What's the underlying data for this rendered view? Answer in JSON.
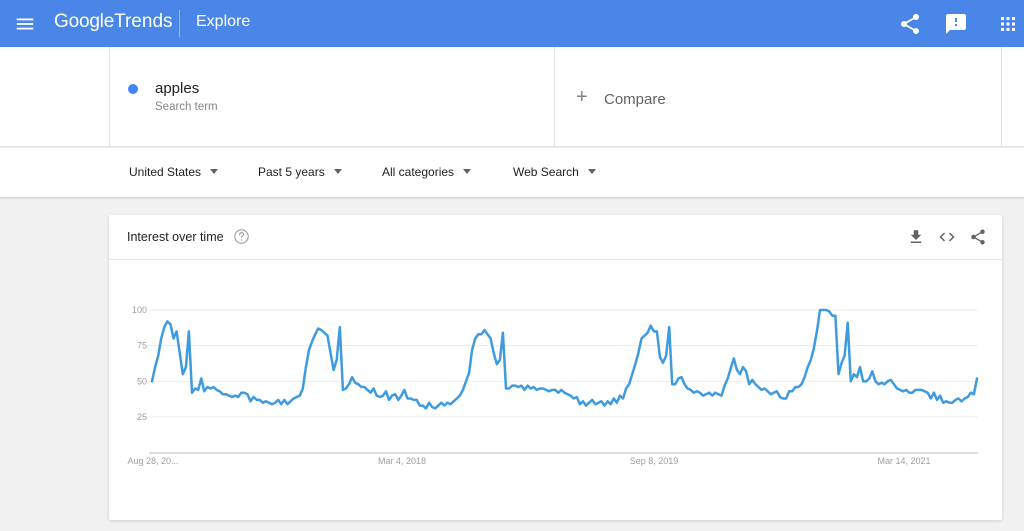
{
  "header": {
    "logo_google": "Google",
    "logo_trends": "Trends",
    "explore_label": "Explore",
    "icons": [
      "menu-icon",
      "share-icon",
      "feedback-icon",
      "apps-icon"
    ]
  },
  "search": {
    "term": "apples",
    "term_type": "Search term",
    "term_color": "#4285f4",
    "compare_label": "Compare"
  },
  "filters": {
    "region": "United States",
    "time": "Past 5 years",
    "category": "All categories",
    "search_type": "Web Search"
  },
  "card": {
    "title": "Interest over time",
    "icons": [
      "help-icon",
      "download-icon",
      "embed-icon",
      "share-icon"
    ]
  },
  "chart_data": {
    "type": "line",
    "x_tick_labels": [
      "Aug 28, 20...",
      "Mar 4, 2018",
      "Sep 8, 2019",
      "Mar 14, 2021"
    ],
    "y_ticks": [
      25,
      50,
      75,
      100
    ],
    "ylim": [
      0,
      100
    ],
    "grid": true,
    "series": [
      {
        "color": "#3f9be0",
        "values": [
          50,
          60,
          68,
          80,
          88,
          92,
          90,
          80,
          85,
          70,
          55,
          60,
          85,
          42,
          45,
          44,
          52,
          43,
          46,
          45,
          46,
          44,
          43,
          41,
          41,
          40,
          39,
          40,
          39,
          42,
          42,
          41,
          36,
          39,
          37,
          37,
          35,
          36,
          35,
          34,
          35,
          37,
          34,
          37,
          34,
          36,
          38,
          39,
          40,
          45,
          60,
          72,
          78,
          83,
          87,
          86,
          84,
          82,
          70,
          58,
          65,
          88,
          44,
          45,
          48,
          53,
          49,
          48,
          46,
          46,
          44,
          42,
          45,
          40,
          39,
          40,
          43,
          37,
          40,
          41,
          37,
          40,
          44,
          38,
          38,
          37,
          37,
          33,
          33,
          31,
          35,
          32,
          31,
          33,
          35,
          33,
          35,
          34,
          36,
          38,
          40,
          44,
          50,
          56,
          72,
          80,
          83,
          83,
          86,
          83,
          80,
          70,
          62,
          65,
          84,
          45,
          45,
          47,
          47,
          46,
          47,
          44,
          47,
          45,
          46,
          44,
          45,
          45,
          44,
          43,
          44,
          44,
          42,
          44,
          42,
          41,
          40,
          38,
          39,
          34,
          36,
          33,
          35,
          37,
          34,
          35,
          36,
          33,
          36,
          34,
          38,
          35,
          40,
          38,
          45,
          48,
          55,
          62,
          70,
          80,
          82,
          84,
          89,
          85,
          85,
          67,
          63,
          68,
          88,
          48,
          48,
          52,
          53,
          48,
          45,
          44,
          42,
          43,
          42,
          40,
          41,
          42,
          40,
          42,
          41,
          40,
          47,
          52,
          59,
          66,
          58,
          55,
          60,
          57,
          48,
          51,
          48,
          46,
          44,
          45,
          43,
          41,
          42,
          43,
          39,
          38,
          38,
          43,
          43,
          46,
          46,
          48,
          53,
          60,
          65,
          73,
          85,
          100,
          100,
          100,
          99,
          96,
          96,
          55,
          63,
          68,
          91,
          50,
          55,
          53,
          60,
          50,
          50,
          52,
          57,
          50,
          48,
          49,
          48,
          50,
          51,
          48,
          45,
          44,
          43,
          44,
          42,
          42,
          44,
          44,
          44,
          43,
          42,
          38,
          42,
          37,
          40,
          35,
          36,
          35,
          35,
          37,
          38,
          36,
          38,
          39,
          42,
          41,
          52
        ]
      }
    ]
  }
}
